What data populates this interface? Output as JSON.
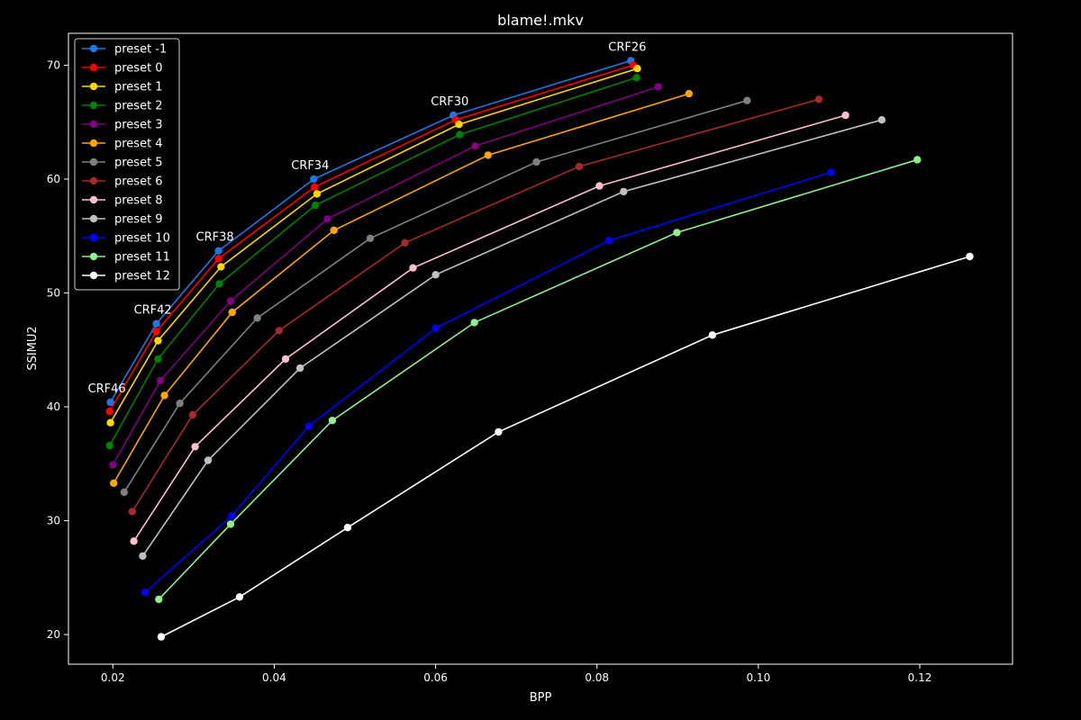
{
  "chart_data": {
    "type": "line",
    "title": "blame!.mkv",
    "xlabel": "BPP",
    "ylabel": "SSIMU2",
    "xlim": [
      0.0145,
      0.1315
    ],
    "ylim": [
      17.4,
      72.8
    ],
    "xticks": [
      0.02,
      0.04,
      0.06,
      0.08,
      0.1,
      0.12
    ],
    "xtick_labels": [
      "0.02",
      "0.04",
      "0.06",
      "0.08",
      "0.10",
      "0.12"
    ],
    "yticks": [
      20,
      30,
      40,
      50,
      60,
      70
    ],
    "ytick_labels": [
      "20",
      "30",
      "40",
      "50",
      "60",
      "70"
    ],
    "grid": false,
    "legend_position": "top-left",
    "background": "#000000",
    "foreground": "#ffffff",
    "annotations": [
      {
        "text": "CRF46",
        "x": 0.0197,
        "y": 40.4
      },
      {
        "text": "CRF42",
        "x": 0.0254,
        "y": 47.3
      },
      {
        "text": "CRF38",
        "x": 0.0331,
        "y": 53.7
      },
      {
        "text": "CRF34",
        "x": 0.0449,
        "y": 60.0
      },
      {
        "text": "CRF30",
        "x": 0.0622,
        "y": 65.6
      },
      {
        "text": "CRF26",
        "x": 0.0842,
        "y": 70.4
      }
    ],
    "series": [
      {
        "name": "preset -1",
        "color": "#1f77e4",
        "x": [
          0.0197,
          0.0254,
          0.0331,
          0.0449,
          0.0622,
          0.0842
        ],
        "y": [
          40.4,
          47.3,
          53.7,
          60.0,
          65.6,
          70.4
        ]
      },
      {
        "name": "preset 0",
        "color": "#ff0000",
        "x": [
          0.0196,
          0.0254,
          0.0331,
          0.045,
          0.0625,
          0.0845
        ],
        "y": [
          39.6,
          46.6,
          53.0,
          59.3,
          65.2,
          70.0
        ]
      },
      {
        "name": "preset 1",
        "color": "#ffd700",
        "x": [
          0.0197,
          0.0256,
          0.0334,
          0.0453,
          0.0629,
          0.085
        ],
        "y": [
          38.6,
          45.8,
          52.3,
          58.7,
          64.8,
          69.7
        ]
      },
      {
        "name": "preset 2",
        "color": "#008000",
        "x": [
          0.0196,
          0.0256,
          0.0332,
          0.0451,
          0.063,
          0.0849
        ],
        "y": [
          36.6,
          44.2,
          50.8,
          57.7,
          63.9,
          68.9
        ]
      },
      {
        "name": "preset 3",
        "color": "#800080",
        "x": [
          0.02,
          0.0259,
          0.0346,
          0.0466,
          0.0649,
          0.0876
        ],
        "y": [
          34.9,
          42.3,
          49.3,
          56.5,
          62.9,
          68.1
        ]
      },
      {
        "name": "preset 4",
        "color": "#ffa500",
        "x": [
          0.0201,
          0.0264,
          0.0348,
          0.0474,
          0.0665,
          0.0914
        ],
        "y": [
          33.3,
          41.0,
          48.3,
          55.5,
          62.1,
          67.5
        ]
      },
      {
        "name": "preset 5",
        "color": "#808080",
        "x": [
          0.0214,
          0.0283,
          0.0379,
          0.0519,
          0.0725,
          0.0986
        ],
        "y": [
          32.5,
          40.3,
          47.8,
          54.8,
          61.5,
          66.9
        ]
      },
      {
        "name": "preset 6",
        "color": "#a52a2a",
        "x": [
          0.0224,
          0.0299,
          0.0406,
          0.0562,
          0.0778,
          0.1075
        ],
        "y": [
          30.8,
          39.3,
          46.7,
          54.4,
          61.1,
          67.0
        ]
      },
      {
        "name": "preset 8",
        "color": "#ffc0cb",
        "x": [
          0.0226,
          0.0302,
          0.0414,
          0.0572,
          0.0803,
          0.1108
        ],
        "y": [
          28.2,
          36.5,
          44.2,
          52.2,
          59.4,
          65.6
        ]
      },
      {
        "name": "preset 9",
        "color": "#c0c0c0",
        "x": [
          0.0237,
          0.0318,
          0.0432,
          0.06,
          0.0833,
          0.1153
        ],
        "y": [
          26.9,
          35.3,
          43.4,
          51.6,
          58.9,
          65.2
        ]
      },
      {
        "name": "preset 10",
        "color": "#0000ff",
        "x": [
          0.024,
          0.0347,
          0.0443,
          0.06,
          0.0815,
          0.109
        ],
        "y": [
          23.7,
          30.4,
          38.3,
          46.9,
          54.6,
          60.6
        ]
      },
      {
        "name": "preset 11",
        "color": "#90ee90",
        "x": [
          0.0257,
          0.0346,
          0.0472,
          0.0648,
          0.0899,
          0.1197
        ],
        "y": [
          23.1,
          29.7,
          38.8,
          47.4,
          55.3,
          61.7
        ]
      },
      {
        "name": "preset 12",
        "color": "#ffffff",
        "x": [
          0.026,
          0.0357,
          0.0491,
          0.0678,
          0.0943,
          0.1262
        ],
        "y": [
          19.8,
          23.3,
          29.4,
          37.8,
          46.3,
          53.2
        ]
      }
    ]
  }
}
